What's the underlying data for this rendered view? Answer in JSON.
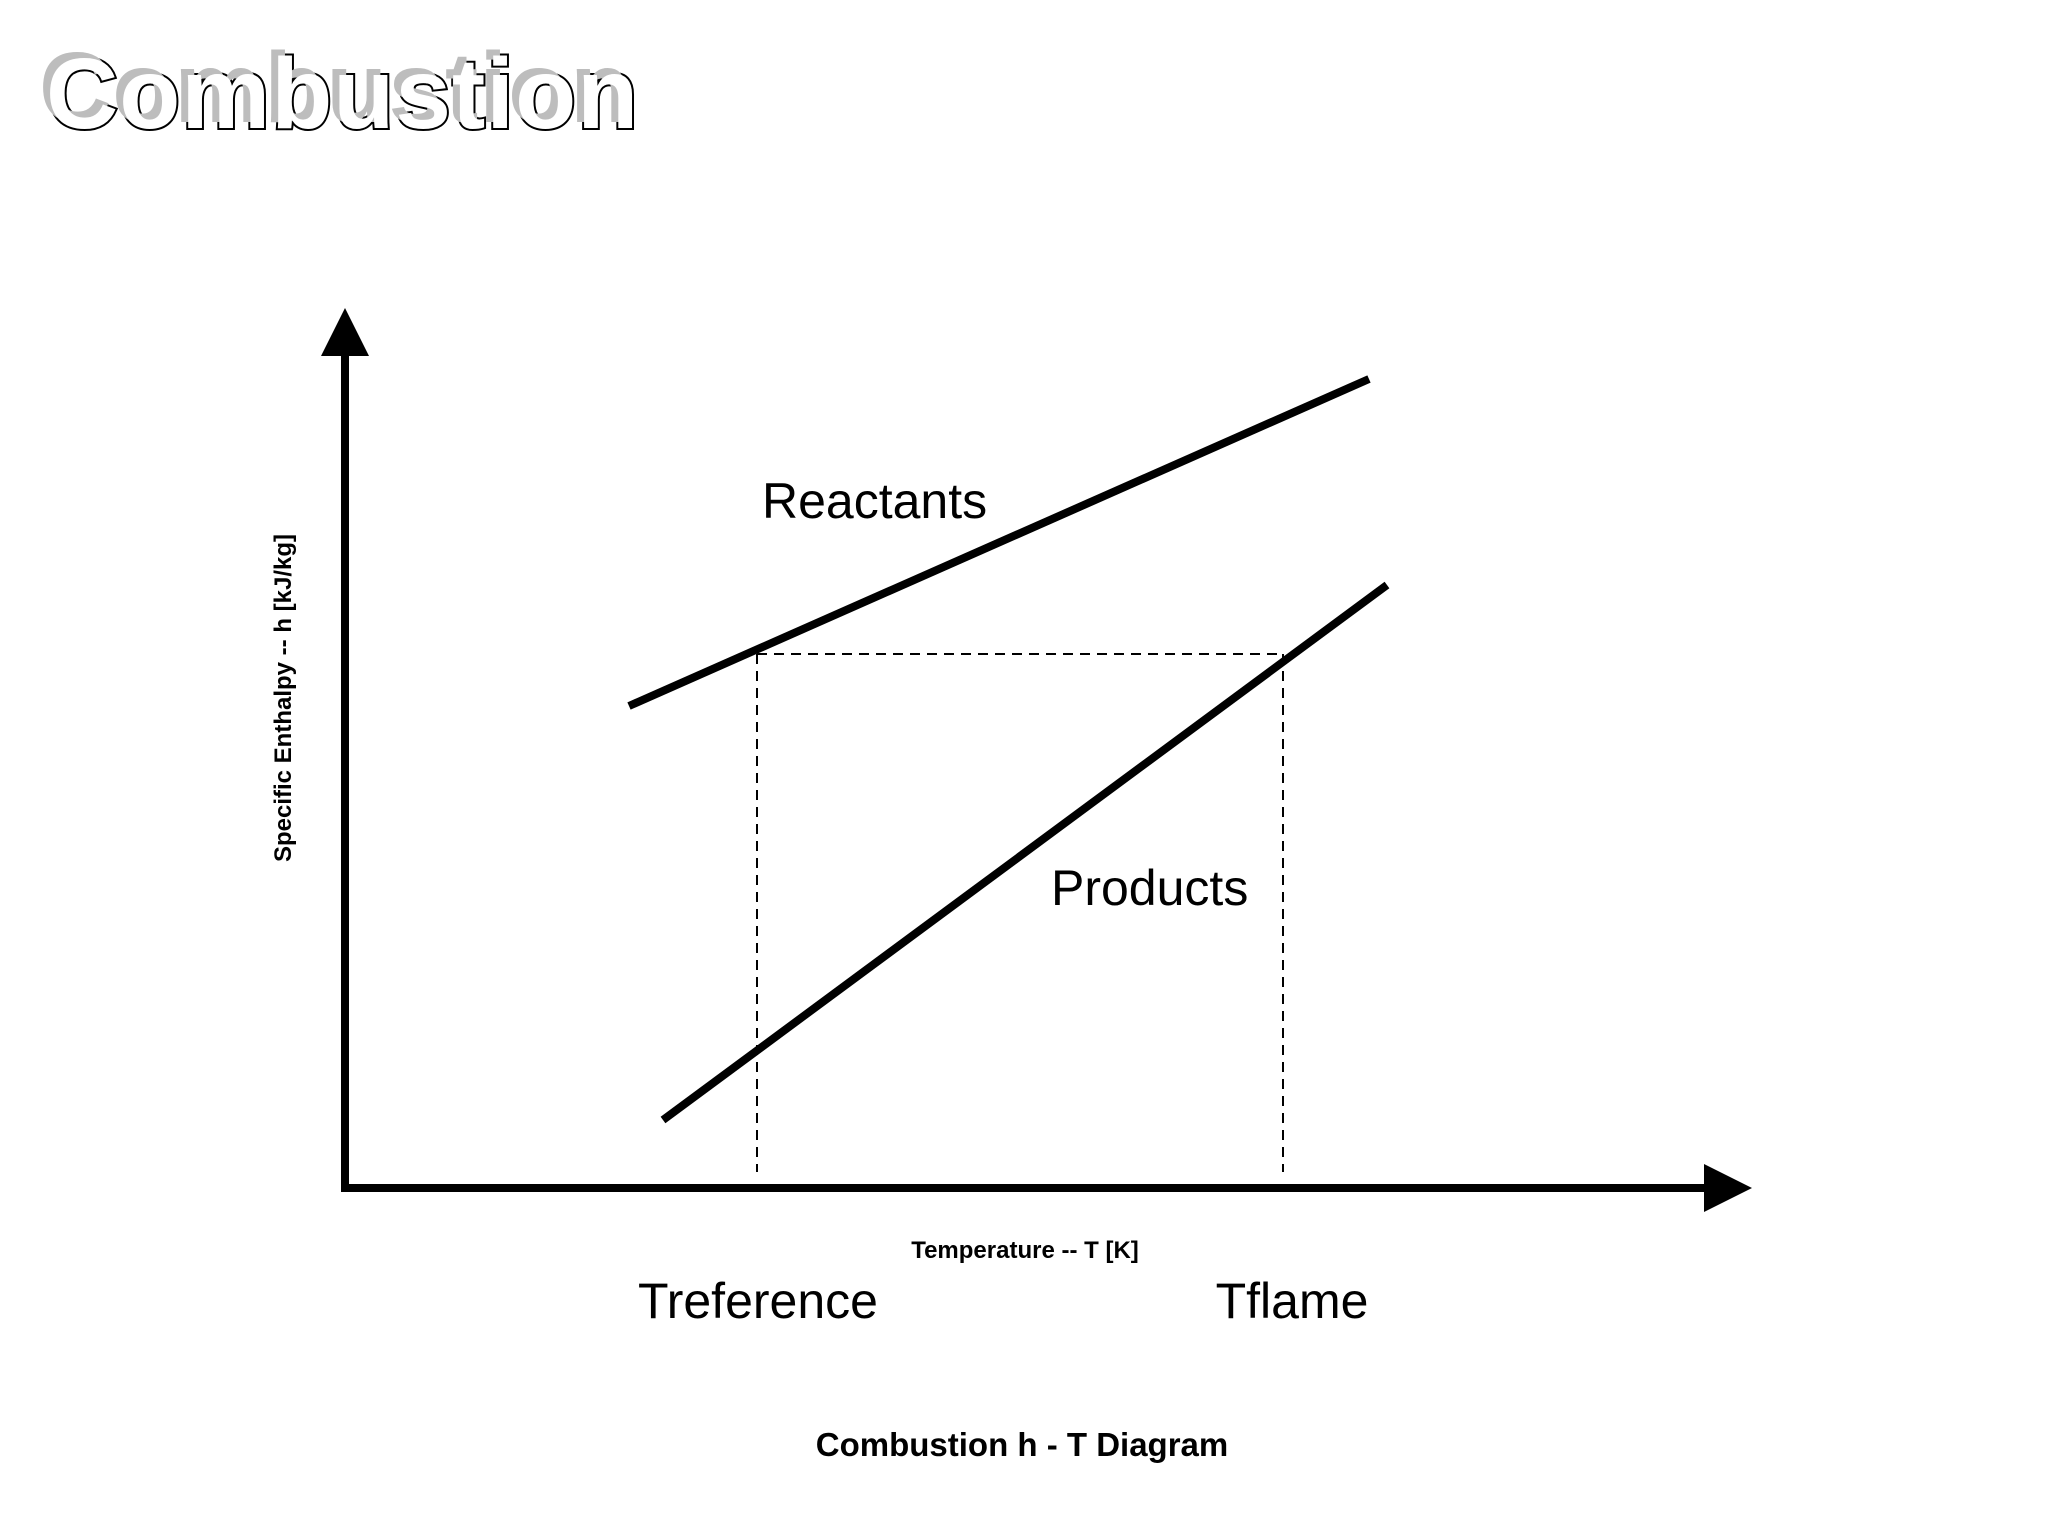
{
  "title": "Combustion",
  "diagram": {
    "y_axis_label": "Specific Enthalpy -- h [kJ/kg]",
    "x_axis_label": "Temperature -- T [K]",
    "reactants_label": "Reactants",
    "products_label": "Products",
    "t_reference_label": "Treference",
    "t_flame_label": "Tflame",
    "caption": "Combustion h - T Diagram"
  }
}
